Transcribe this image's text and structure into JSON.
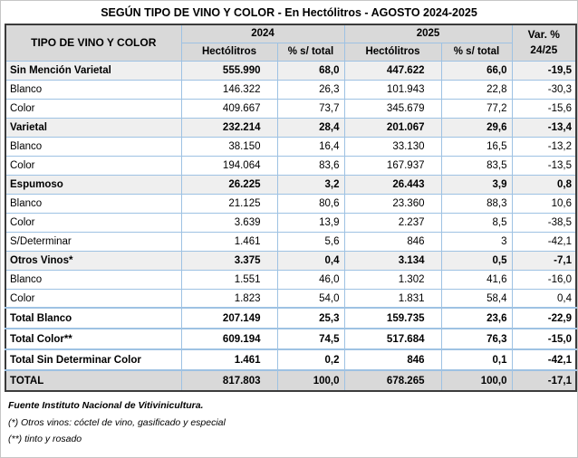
{
  "title": "SEGÚN TIPO DE VINO Y COLOR - En Hectólitros - AGOSTO 2024-2025",
  "table": {
    "corner_header": "TIPO DE VINO Y COLOR",
    "year_groups": [
      {
        "label": "2024"
      },
      {
        "label": "2025"
      }
    ],
    "sub_headers": [
      "Hectólitros",
      "% s/ total"
    ],
    "var_header": {
      "line1": "Var. %",
      "line2": "24/25"
    },
    "rows": [
      {
        "label": "Sin Mención Varietal",
        "style": "category",
        "values": [
          "555.990",
          "68,0",
          "447.622",
          "66,0",
          "-19,5"
        ]
      },
      {
        "label": "Blanco",
        "style": "detail",
        "values": [
          "146.322",
          "26,3",
          "101.943",
          "22,8",
          "-30,3"
        ]
      },
      {
        "label": "Color",
        "style": "detail",
        "values": [
          "409.667",
          "73,7",
          "345.679",
          "77,2",
          "-15,6"
        ]
      },
      {
        "label": "Varietal",
        "style": "category",
        "values": [
          "232.214",
          "28,4",
          "201.067",
          "29,6",
          "-13,4"
        ]
      },
      {
        "label": "Blanco",
        "style": "detail",
        "values": [
          "38.150",
          "16,4",
          "33.130",
          "16,5",
          "-13,2"
        ]
      },
      {
        "label": "Color",
        "style": "detail",
        "values": [
          "194.064",
          "83,6",
          "167.937",
          "83,5",
          "-13,5"
        ]
      },
      {
        "label": "Espumoso",
        "style": "category",
        "values": [
          "26.225",
          "3,2",
          "26.443",
          "3,9",
          "0,8"
        ]
      },
      {
        "label": "Blanco",
        "style": "detail",
        "values": [
          "21.125",
          "80,6",
          "23.360",
          "88,3",
          "10,6"
        ]
      },
      {
        "label": "Color",
        "style": "detail",
        "values": [
          "3.639",
          "13,9",
          "2.237",
          "8,5",
          "-38,5"
        ]
      },
      {
        "label": "S/Determinar",
        "style": "detail",
        "values": [
          "1.461",
          "5,6",
          "846",
          "3",
          "-42,1"
        ]
      },
      {
        "label": "Otros Vinos*",
        "style": "category",
        "values": [
          "3.375",
          "0,4",
          "3.134",
          "0,5",
          "-7,1"
        ]
      },
      {
        "label": "Blanco",
        "style": "detail",
        "values": [
          "1.551",
          "46,0",
          "1.302",
          "41,6",
          "-16,0"
        ]
      },
      {
        "label": "Color",
        "style": "detail",
        "values": [
          "1.823",
          "54,0",
          "1.831",
          "58,4",
          "0,4"
        ]
      },
      {
        "label": "Total Blanco",
        "style": "total",
        "values": [
          "207.149",
          "25,3",
          "159.735",
          "23,6",
          "-22,9"
        ]
      },
      {
        "label": "Total Color**",
        "style": "total",
        "values": [
          "609.194",
          "74,5",
          "517.684",
          "76,3",
          "-15,0"
        ]
      },
      {
        "label": "Total Sin Determinar Color",
        "style": "total",
        "values": [
          "1.461",
          "0,2",
          "846",
          "0,1",
          "-42,1"
        ]
      },
      {
        "label": "TOTAL",
        "style": "grand",
        "values": [
          "817.803",
          "100,0",
          "678.265",
          "100,0",
          "-17,1"
        ]
      }
    ]
  },
  "footnotes": [
    "Fuente Instituto Nacional de Vitivinicultura.",
    "(*) Otros vinos: cóctel de vino, gasificado y especial",
    "(**) tinto y rosado"
  ],
  "colors": {
    "grid_blue": "#9ec2e3",
    "outer_border": "#3b3b3b",
    "header_bg": "#d9d9d9",
    "category_bg": "#efefef",
    "grand_total_bg": "#d9d9d9",
    "frame_gray": "#c6c6c6",
    "text_black": "#000000"
  }
}
